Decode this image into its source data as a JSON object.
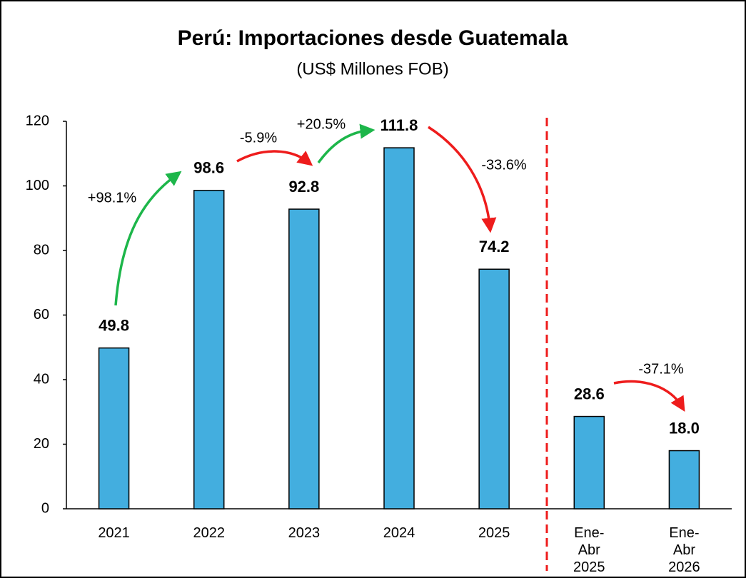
{
  "chart_data": {
    "type": "bar",
    "title": "Perú: Importaciones desde Guatemala",
    "subtitle": "(US$ Millones FOB)",
    "categories": [
      "2021",
      "2022",
      "2023",
      "2024",
      "2025",
      "Ene-Abr 2025",
      "Ene-Abr 2026"
    ],
    "values": [
      49.8,
      98.6,
      92.8,
      111.8,
      74.2,
      28.6,
      18.0
    ],
    "value_labels": [
      "49.8",
      "98.6",
      "92.8",
      "111.8",
      "74.2",
      "28.6",
      "18.0"
    ],
    "color": "#43aedf",
    "ylim": [
      0,
      120
    ],
    "yticks": [
      0,
      20,
      40,
      60,
      80,
      100,
      120
    ],
    "grid": false,
    "annotations": [
      {
        "text": "+98.1%",
        "color": "#1db64a"
      },
      {
        "text": "-5.9%",
        "color": "#ee1c1c"
      },
      {
        "text": "+20.5%",
        "color": "#1db64a"
      },
      {
        "text": "-33.6%",
        "color": "#ee1c1c"
      },
      {
        "text": "-37.1%",
        "color": "#ee1c1c"
      }
    ]
  }
}
